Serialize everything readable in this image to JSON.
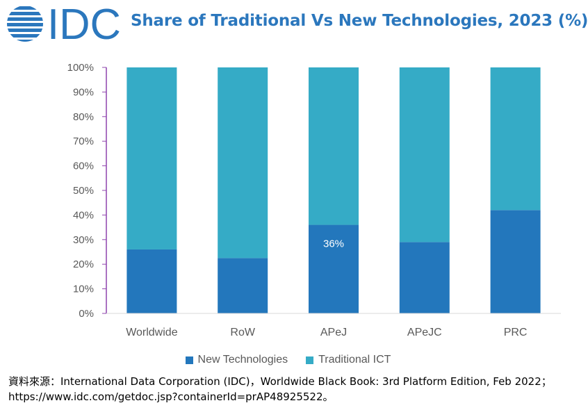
{
  "brand": {
    "logo_text": "IDC",
    "logo_color": "#2b77bd"
  },
  "title": "Share of Traditional Vs New Technologies, 2023 (%)",
  "chart_data": {
    "type": "bar",
    "stacked": true,
    "categories": [
      "Worldwide",
      "RoW",
      "APeJ",
      "APeJC",
      "PRC"
    ],
    "series": [
      {
        "name": "New Technologies",
        "values": [
          26,
          22.5,
          36,
          29,
          42
        ],
        "color": "#2377bc"
      },
      {
        "name": "Traditional ICT",
        "values": [
          74,
          77.5,
          64,
          71,
          58
        ],
        "color": "#35abc6"
      }
    ],
    "y_ticks": [
      "0%",
      "10%",
      "20%",
      "30%",
      "40%",
      "50%",
      "60%",
      "70%",
      "80%",
      "90%",
      "100%"
    ],
    "ylim": [
      0,
      100
    ],
    "annotations": [
      {
        "category": "APeJ",
        "series": "New Technologies",
        "label": "36%"
      }
    ],
    "legend_position": "bottom",
    "grid": false
  },
  "source": "資料來源：International Data Corporation (IDC)，Worldwide Black Book: 3rd Platform Edition, Feb 2022；https://www.idc.com/getdoc.jsp?containerId=prAP48925522。"
}
